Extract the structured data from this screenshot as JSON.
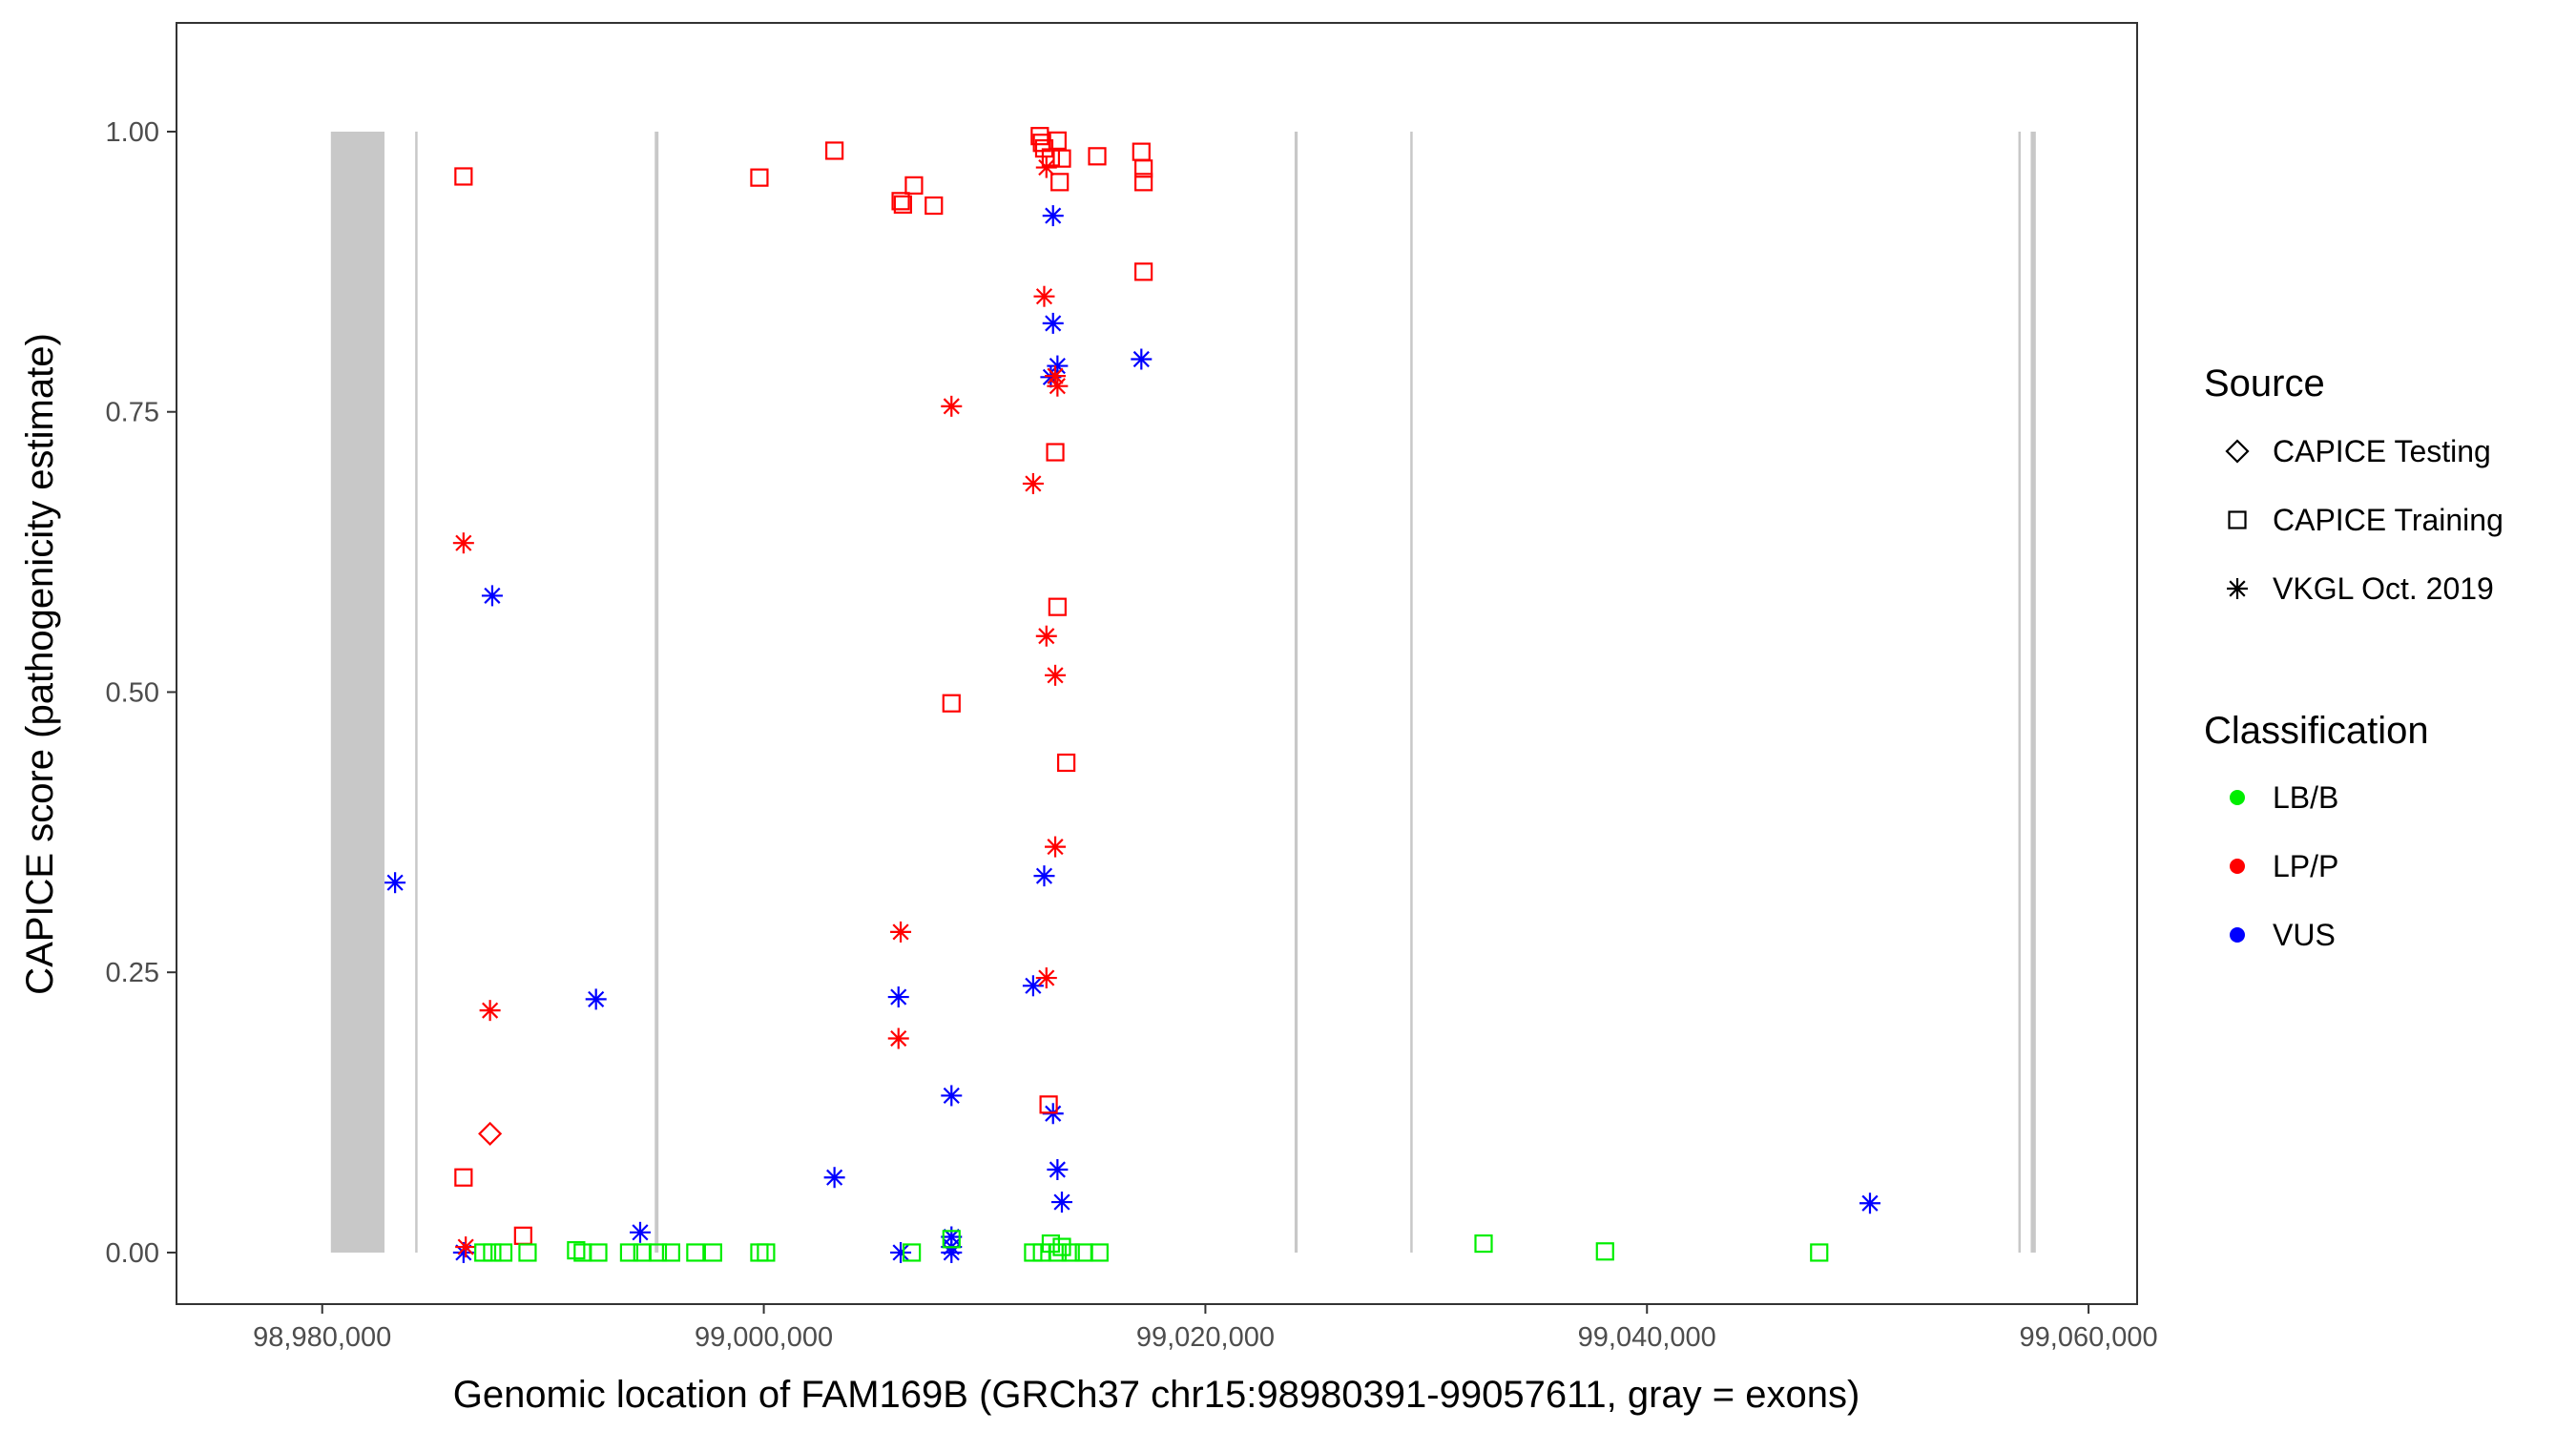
{
  "chart_data": {
    "type": "scatter",
    "title": "",
    "xlabel": "Genomic location of FAM169B (GRCh37 chr15:98980391-99057611, gray = exons)",
    "ylabel": "CAPICE score (pathogenicity estimate)",
    "xlim": [
      98973400,
      99062200
    ],
    "ylim": [
      -0.046,
      1.097
    ],
    "x_ticks": [
      98980000,
      99000000,
      99020000,
      99040000,
      99060000
    ],
    "x_tick_labels": [
      "98,980,000",
      "99,000,000",
      "99,020,000",
      "99,040,000",
      "99,060,000"
    ],
    "y_ticks": [
      0,
      0.25,
      0.5,
      0.75,
      1.0
    ],
    "y_tick_labels": [
      "0.00",
      "0.25",
      "0.50",
      "0.75",
      "1.00"
    ],
    "grid": false,
    "exons": [
      [
        98980391,
        98982820
      ],
      [
        98984210,
        98984290
      ],
      [
        98995060,
        98995230
      ],
      [
        99024040,
        99024180
      ],
      [
        99029280,
        99029340
      ],
      [
        99056820,
        99056880
      ],
      [
        99057380,
        99057611
      ]
    ],
    "legend": {
      "position": "right",
      "source": {
        "title": "Source",
        "items": [
          {
            "label": "CAPICE Testing",
            "shape": "diamond"
          },
          {
            "label": "CAPICE Training",
            "shape": "square"
          },
          {
            "label": "VKGL Oct. 2019",
            "shape": "asterisk"
          }
        ]
      },
      "classification": {
        "title": "Classification",
        "items": [
          {
            "label": "LB/B",
            "color": "#00ee00"
          },
          {
            "label": "LP/P",
            "color": "#ff0000"
          },
          {
            "label": "VUS",
            "color": "#0000ff"
          }
        ]
      }
    },
    "colors": {
      "LB/B": "#00ee00",
      "LP/P": "#ff0000",
      "VUS": "#0000ff",
      "exon": "#c8c8c8"
    },
    "points": [
      {
        "x": 98983300,
        "y": 0.33,
        "source": "VKGL Oct. 2019",
        "class": "VUS"
      },
      {
        "x": 98986400,
        "y": 0.0,
        "source": "VKGL Oct. 2019",
        "class": "VUS"
      },
      {
        "x": 98986500,
        "y": 0.005,
        "source": "VKGL Oct. 2019",
        "class": "LP/P"
      },
      {
        "x": 98986400,
        "y": 0.633,
        "source": "VKGL Oct. 2019",
        "class": "LP/P"
      },
      {
        "x": 98987700,
        "y": 0.586,
        "source": "VKGL Oct. 2019",
        "class": "VUS"
      },
      {
        "x": 98987600,
        "y": 0.216,
        "source": "VKGL Oct. 2019",
        "class": "LP/P"
      },
      {
        "x": 98992400,
        "y": 0.226,
        "source": "VKGL Oct. 2019",
        "class": "VUS"
      },
      {
        "x": 98994400,
        "y": 0.018,
        "source": "VKGL Oct. 2019",
        "class": "VUS"
      },
      {
        "x": 99003200,
        "y": 0.067,
        "source": "VKGL Oct. 2019",
        "class": "VUS"
      },
      {
        "x": 99006200,
        "y": 0.286,
        "source": "VKGL Oct. 2019",
        "class": "LP/P"
      },
      {
        "x": 99006100,
        "y": 0.228,
        "source": "VKGL Oct. 2019",
        "class": "VUS"
      },
      {
        "x": 99006100,
        "y": 0.191,
        "source": "VKGL Oct. 2019",
        "class": "LP/P"
      },
      {
        "x": 99006200,
        "y": 0.0,
        "source": "VKGL Oct. 2019",
        "class": "VUS"
      },
      {
        "x": 99008500,
        "y": 0.755,
        "source": "VKGL Oct. 2019",
        "class": "LP/P"
      },
      {
        "x": 99008500,
        "y": 0.14,
        "source": "VKGL Oct. 2019",
        "class": "VUS"
      },
      {
        "x": 99008500,
        "y": 0.014,
        "source": "VKGL Oct. 2019",
        "class": "VUS"
      },
      {
        "x": 99008500,
        "y": 0.005,
        "source": "VKGL Oct. 2019",
        "class": "VUS"
      },
      {
        "x": 99008500,
        "y": 0.0,
        "source": "VKGL Oct. 2019",
        "class": "VUS"
      },
      {
        "x": 99012200,
        "y": 0.686,
        "source": "VKGL Oct. 2019",
        "class": "LP/P"
      },
      {
        "x": 99012200,
        "y": 0.238,
        "source": "VKGL Oct. 2019",
        "class": "VUS"
      },
      {
        "x": 99012700,
        "y": 0.853,
        "source": "VKGL Oct. 2019",
        "class": "LP/P"
      },
      {
        "x": 99012800,
        "y": 0.55,
        "source": "VKGL Oct. 2019",
        "class": "LP/P"
      },
      {
        "x": 99012700,
        "y": 0.336,
        "source": "VKGL Oct. 2019",
        "class": "VUS"
      },
      {
        "x": 99012800,
        "y": 0.245,
        "source": "VKGL Oct. 2019",
        "class": "LP/P"
      },
      {
        "x": 99012800,
        "y": 0.968,
        "source": "VKGL Oct. 2019",
        "class": "LP/P"
      },
      {
        "x": 99013000,
        "y": 0.781,
        "source": "VKGL Oct. 2019",
        "class": "VUS"
      },
      {
        "x": 99013100,
        "y": 0.925,
        "source": "VKGL Oct. 2019",
        "class": "VUS"
      },
      {
        "x": 99013100,
        "y": 0.829,
        "source": "VKGL Oct. 2019",
        "class": "VUS"
      },
      {
        "x": 99013300,
        "y": 0.791,
        "source": "VKGL Oct. 2019",
        "class": "VUS"
      },
      {
        "x": 99013200,
        "y": 0.782,
        "source": "VKGL Oct. 2019",
        "class": "LP/P"
      },
      {
        "x": 99013300,
        "y": 0.773,
        "source": "VKGL Oct. 2019",
        "class": "LP/P"
      },
      {
        "x": 99013200,
        "y": 0.515,
        "source": "VKGL Oct. 2019",
        "class": "LP/P"
      },
      {
        "x": 99013200,
        "y": 0.362,
        "source": "VKGL Oct. 2019",
        "class": "LP/P"
      },
      {
        "x": 99013100,
        "y": 0.124,
        "source": "VKGL Oct. 2019",
        "class": "VUS"
      },
      {
        "x": 99013300,
        "y": 0.074,
        "source": "VKGL Oct. 2019",
        "class": "VUS"
      },
      {
        "x": 99013500,
        "y": 0.045,
        "source": "VKGL Oct. 2019",
        "class": "VUS"
      },
      {
        "x": 99017100,
        "y": 0.797,
        "source": "VKGL Oct. 2019",
        "class": "VUS"
      },
      {
        "x": 99050100,
        "y": 0.044,
        "source": "VKGL Oct. 2019",
        "class": "VUS"
      },
      {
        "x": 98987600,
        "y": 0.106,
        "source": "CAPICE Testing",
        "class": "LP/P"
      },
      {
        "x": 98986400,
        "y": 0.96,
        "source": "CAPICE Training",
        "class": "LP/P"
      },
      {
        "x": 98986400,
        "y": 0.067,
        "source": "CAPICE Training",
        "class": "LP/P"
      },
      {
        "x": 98989100,
        "y": 0.015,
        "source": "CAPICE Training",
        "class": "LP/P"
      },
      {
        "x": 98999800,
        "y": 0.959,
        "source": "CAPICE Training",
        "class": "LP/P"
      },
      {
        "x": 99003200,
        "y": 0.983,
        "source": "CAPICE Training",
        "class": "LP/P"
      },
      {
        "x": 99006200,
        "y": 0.938,
        "source": "CAPICE Training",
        "class": "LP/P"
      },
      {
        "x": 99006300,
        "y": 0.935,
        "source": "CAPICE Training",
        "class": "LP/P"
      },
      {
        "x": 99006800,
        "y": 0.952,
        "source": "CAPICE Training",
        "class": "LP/P"
      },
      {
        "x": 99007700,
        "y": 0.934,
        "source": "CAPICE Training",
        "class": "LP/P"
      },
      {
        "x": 99008500,
        "y": 0.49,
        "source": "CAPICE Training",
        "class": "LP/P"
      },
      {
        "x": 99012500,
        "y": 0.996,
        "source": "CAPICE Training",
        "class": "LP/P"
      },
      {
        "x": 99012600,
        "y": 0.99,
        "source": "CAPICE Training",
        "class": "LP/P"
      },
      {
        "x": 99012700,
        "y": 0.985,
        "source": "CAPICE Training",
        "class": "LP/P"
      },
      {
        "x": 99013000,
        "y": 0.977,
        "source": "CAPICE Training",
        "class": "LP/P"
      },
      {
        "x": 99013300,
        "y": 0.992,
        "source": "CAPICE Training",
        "class": "LP/P"
      },
      {
        "x": 99013500,
        "y": 0.976,
        "source": "CAPICE Training",
        "class": "LP/P"
      },
      {
        "x": 99013400,
        "y": 0.955,
        "source": "CAPICE Training",
        "class": "LP/P"
      },
      {
        "x": 99013200,
        "y": 0.714,
        "source": "CAPICE Training",
        "class": "LP/P"
      },
      {
        "x": 99013300,
        "y": 0.576,
        "source": "CAPICE Training",
        "class": "LP/P"
      },
      {
        "x": 99013700,
        "y": 0.437,
        "source": "CAPICE Training",
        "class": "LP/P"
      },
      {
        "x": 99012900,
        "y": 0.132,
        "source": "CAPICE Training",
        "class": "LP/P"
      },
      {
        "x": 99015100,
        "y": 0.978,
        "source": "CAPICE Training",
        "class": "LP/P"
      },
      {
        "x": 99017100,
        "y": 0.982,
        "source": "CAPICE Training",
        "class": "LP/P"
      },
      {
        "x": 99017200,
        "y": 0.967,
        "source": "CAPICE Training",
        "class": "LP/P"
      },
      {
        "x": 99017200,
        "y": 0.955,
        "source": "CAPICE Training",
        "class": "LP/P"
      },
      {
        "x": 99017200,
        "y": 0.875,
        "source": "CAPICE Training",
        "class": "LP/P"
      },
      {
        "x": 98987300,
        "y": 0.0,
        "source": "CAPICE Training",
        "class": "LB/B"
      },
      {
        "x": 98987700,
        "y": 0.0,
        "source": "CAPICE Training",
        "class": "LB/B"
      },
      {
        "x": 98988200,
        "y": 0.0,
        "source": "CAPICE Training",
        "class": "LB/B"
      },
      {
        "x": 98989300,
        "y": 0.0,
        "source": "CAPICE Training",
        "class": "LB/B"
      },
      {
        "x": 98991500,
        "y": 0.002,
        "source": "CAPICE Training",
        "class": "LB/B"
      },
      {
        "x": 98991800,
        "y": 0.0,
        "source": "CAPICE Training",
        "class": "LB/B"
      },
      {
        "x": 98992500,
        "y": 0.0,
        "source": "CAPICE Training",
        "class": "LB/B"
      },
      {
        "x": 98993900,
        "y": 0.0,
        "source": "CAPICE Training",
        "class": "LB/B"
      },
      {
        "x": 98994500,
        "y": 0.0,
        "source": "CAPICE Training",
        "class": "LB/B"
      },
      {
        "x": 98995200,
        "y": 0.0,
        "source": "CAPICE Training",
        "class": "LB/B"
      },
      {
        "x": 98995800,
        "y": 0.0,
        "source": "CAPICE Training",
        "class": "LB/B"
      },
      {
        "x": 98996900,
        "y": 0.0,
        "source": "CAPICE Training",
        "class": "LB/B"
      },
      {
        "x": 98997700,
        "y": 0.0,
        "source": "CAPICE Training",
        "class": "LB/B"
      },
      {
        "x": 98999800,
        "y": 0.0,
        "source": "CAPICE Training",
        "class": "LB/B"
      },
      {
        "x": 99000100,
        "y": 0.0,
        "source": "CAPICE Training",
        "class": "LB/B"
      },
      {
        "x": 99006700,
        "y": 0.0,
        "source": "CAPICE Training",
        "class": "LB/B"
      },
      {
        "x": 99008500,
        "y": 0.012,
        "source": "CAPICE Training",
        "class": "LB/B"
      },
      {
        "x": 99012200,
        "y": 0.0,
        "source": "CAPICE Training",
        "class": "LB/B"
      },
      {
        "x": 99012600,
        "y": 0.0,
        "source": "CAPICE Training",
        "class": "LB/B"
      },
      {
        "x": 99013000,
        "y": 0.008,
        "source": "CAPICE Training",
        "class": "LB/B"
      },
      {
        "x": 99013300,
        "y": 0.0,
        "source": "CAPICE Training",
        "class": "LB/B"
      },
      {
        "x": 99013500,
        "y": 0.005,
        "source": "CAPICE Training",
        "class": "LB/B"
      },
      {
        "x": 99013900,
        "y": 0.0,
        "source": "CAPICE Training",
        "class": "LB/B"
      },
      {
        "x": 99014500,
        "y": 0.0,
        "source": "CAPICE Training",
        "class": "LB/B"
      },
      {
        "x": 99015200,
        "y": 0.0,
        "source": "CAPICE Training",
        "class": "LB/B"
      },
      {
        "x": 99032600,
        "y": 0.008,
        "source": "CAPICE Training",
        "class": "LB/B"
      },
      {
        "x": 99038100,
        "y": 0.001,
        "source": "CAPICE Training",
        "class": "LB/B"
      },
      {
        "x": 99047800,
        "y": 0.0,
        "source": "CAPICE Training",
        "class": "LB/B"
      }
    ]
  }
}
